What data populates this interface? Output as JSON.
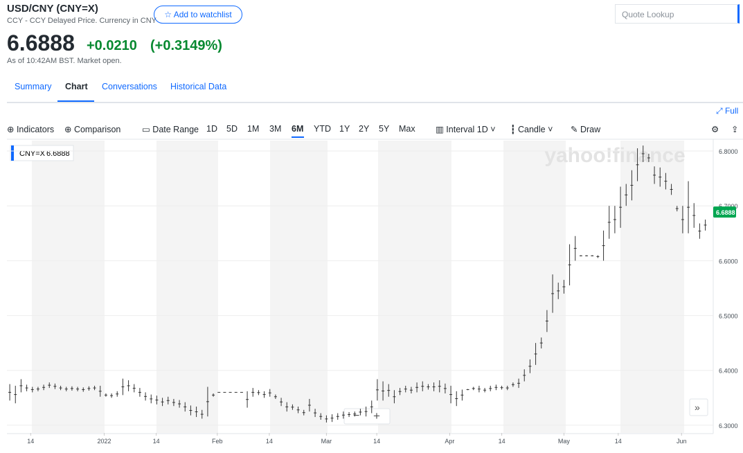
{
  "header": {
    "title": "USD/CNY (CNY=X)",
    "subtitle": "CCY - CCY Delayed Price. Currency in CNY",
    "watchlist": "Add to watchlist",
    "search": "Quote Lookup",
    "price": "6.6888",
    "change": "+0.0210",
    "change_pct": "(+0.3149%)",
    "as_of": "As of 10:42AM BST. Market open."
  },
  "tabs": [
    "Summary",
    "Chart",
    "Conversations",
    "Historical Data"
  ],
  "full": "Full",
  "toolbar": {
    "indicators": "Indicators",
    "comparison": "Comparison",
    "date_range": "Date Range",
    "ranges": [
      "1D",
      "5D",
      "1M",
      "3M",
      "6M",
      "YTD",
      "1Y",
      "2Y",
      "5Y",
      "Max"
    ],
    "interval": "Interval",
    "interval_value": "1D",
    "chart_style": "Candle",
    "draw": "Draw"
  },
  "legend_symbol": "CNY=X",
  "watermark": "yahoo!finance",
  "chart_data": {
    "type": "range-bar",
    "color": "#333333",
    "series": [
      {
        "name": "CNY=X",
        "low": [
          6.345,
          6.34,
          6.36,
          6.362,
          6.36,
          6.362,
          6.364,
          6.368,
          6.366,
          6.364,
          6.362,
          6.363,
          6.362,
          6.361,
          6.363,
          6.364,
          6.352,
          6.352,
          6.35,
          6.352,
          6.355,
          6.362,
          6.36,
          6.352,
          6.345,
          6.34,
          6.338,
          6.335,
          6.338,
          6.335,
          6.332,
          6.325,
          6.318,
          6.315,
          6.312,
          6.316,
          6.352,
          6.36,
          6.36,
          6.36,
          6.36,
          6.36,
          6.332,
          6.352,
          6.355,
          6.35,
          6.352,
          6.348,
          6.335,
          6.325,
          6.328,
          6.322,
          6.318,
          6.325,
          6.315,
          6.31,
          6.305,
          6.306,
          6.31,
          6.312,
          6.315,
          6.316,
          6.318,
          6.316,
          6.322,
          6.345,
          6.345,
          6.352,
          6.34,
          6.355,
          6.36,
          6.358,
          6.36,
          6.362,
          6.365,
          6.362,
          6.36,
          6.358,
          6.34,
          6.335,
          6.345,
          6.364,
          6.364,
          6.36,
          6.36,
          6.362,
          6.364,
          6.365,
          6.364,
          6.37,
          6.368,
          6.38,
          6.395,
          6.41,
          6.44,
          6.47,
          6.505,
          6.53,
          6.54,
          6.555,
          6.6,
          6.608,
          6.608,
          6.608,
          6.605,
          6.6,
          6.64,
          6.65,
          6.66,
          6.7,
          6.71,
          6.745,
          6.78,
          6.78,
          6.74,
          6.735,
          6.73,
          6.72,
          6.69,
          6.65,
          6.65,
          6.66,
          6.64,
          6.655
        ],
        "high": [
          6.375,
          6.372,
          6.384,
          6.374,
          6.37,
          6.37,
          6.374,
          6.378,
          6.376,
          6.372,
          6.37,
          6.371,
          6.37,
          6.369,
          6.371,
          6.372,
          6.372,
          6.358,
          6.358,
          6.362,
          6.385,
          6.382,
          6.375,
          6.368,
          6.36,
          6.356,
          6.354,
          6.35,
          6.352,
          6.348,
          6.346,
          6.342,
          6.336,
          6.334,
          6.328,
          6.37,
          6.358,
          6.36,
          6.36,
          6.36,
          6.36,
          6.36,
          6.362,
          6.368,
          6.364,
          6.362,
          6.366,
          6.356,
          6.35,
          6.342,
          6.338,
          6.334,
          6.328,
          6.348,
          6.33,
          6.322,
          6.318,
          6.32,
          6.322,
          6.325,
          6.324,
          6.325,
          6.33,
          6.334,
          6.345,
          6.384,
          6.38,
          6.375,
          6.364,
          6.368,
          6.372,
          6.37,
          6.378,
          6.38,
          6.375,
          6.378,
          6.382,
          6.376,
          6.372,
          6.362,
          6.365,
          6.366,
          6.37,
          6.372,
          6.368,
          6.372,
          6.374,
          6.372,
          6.372,
          6.378,
          6.385,
          6.402,
          6.42,
          6.45,
          6.46,
          6.51,
          6.575,
          6.56,
          6.565,
          6.63,
          6.645,
          6.61,
          6.61,
          6.61,
          6.61,
          6.655,
          6.7,
          6.7,
          6.735,
          6.74,
          6.765,
          6.805,
          6.81,
          6.795,
          6.772,
          6.77,
          6.76,
          6.74,
          6.7,
          6.7,
          6.745,
          6.705,
          6.668,
          6.675
        ]
      }
    ],
    "xlim": [
      -0.5,
      124.4
    ],
    "xticks": [
      {
        "value": 3.7,
        "label": "14"
      },
      {
        "value": 16.7,
        "label": "2022"
      },
      {
        "value": 25.9,
        "label": "14"
      },
      {
        "value": 36.7,
        "label": "Feb"
      },
      {
        "value": 45.9,
        "label": "14"
      },
      {
        "value": 56,
        "label": "Mar"
      },
      {
        "value": 64.9,
        "label": "14"
      },
      {
        "value": 77.8,
        "label": "Apr"
      },
      {
        "value": 87,
        "label": "14"
      },
      {
        "value": 98,
        "label": "May"
      },
      {
        "value": 107.6,
        "label": "14"
      },
      {
        "value": 118.8,
        "label": "Jun"
      }
    ],
    "ylim": [
      6.286,
      6.819
    ],
    "yticks": [
      {
        "value": 6.3,
        "label": "6.3000"
      },
      {
        "value": 6.4,
        "label": "6.4000"
      },
      {
        "value": 6.5,
        "label": "6.5000"
      },
      {
        "value": 6.6,
        "label": "6.6000"
      },
      {
        "value": 6.7,
        "label": "6.7000"
      },
      {
        "value": 6.8,
        "label": "6.8000"
      }
    ],
    "grid": true
  }
}
